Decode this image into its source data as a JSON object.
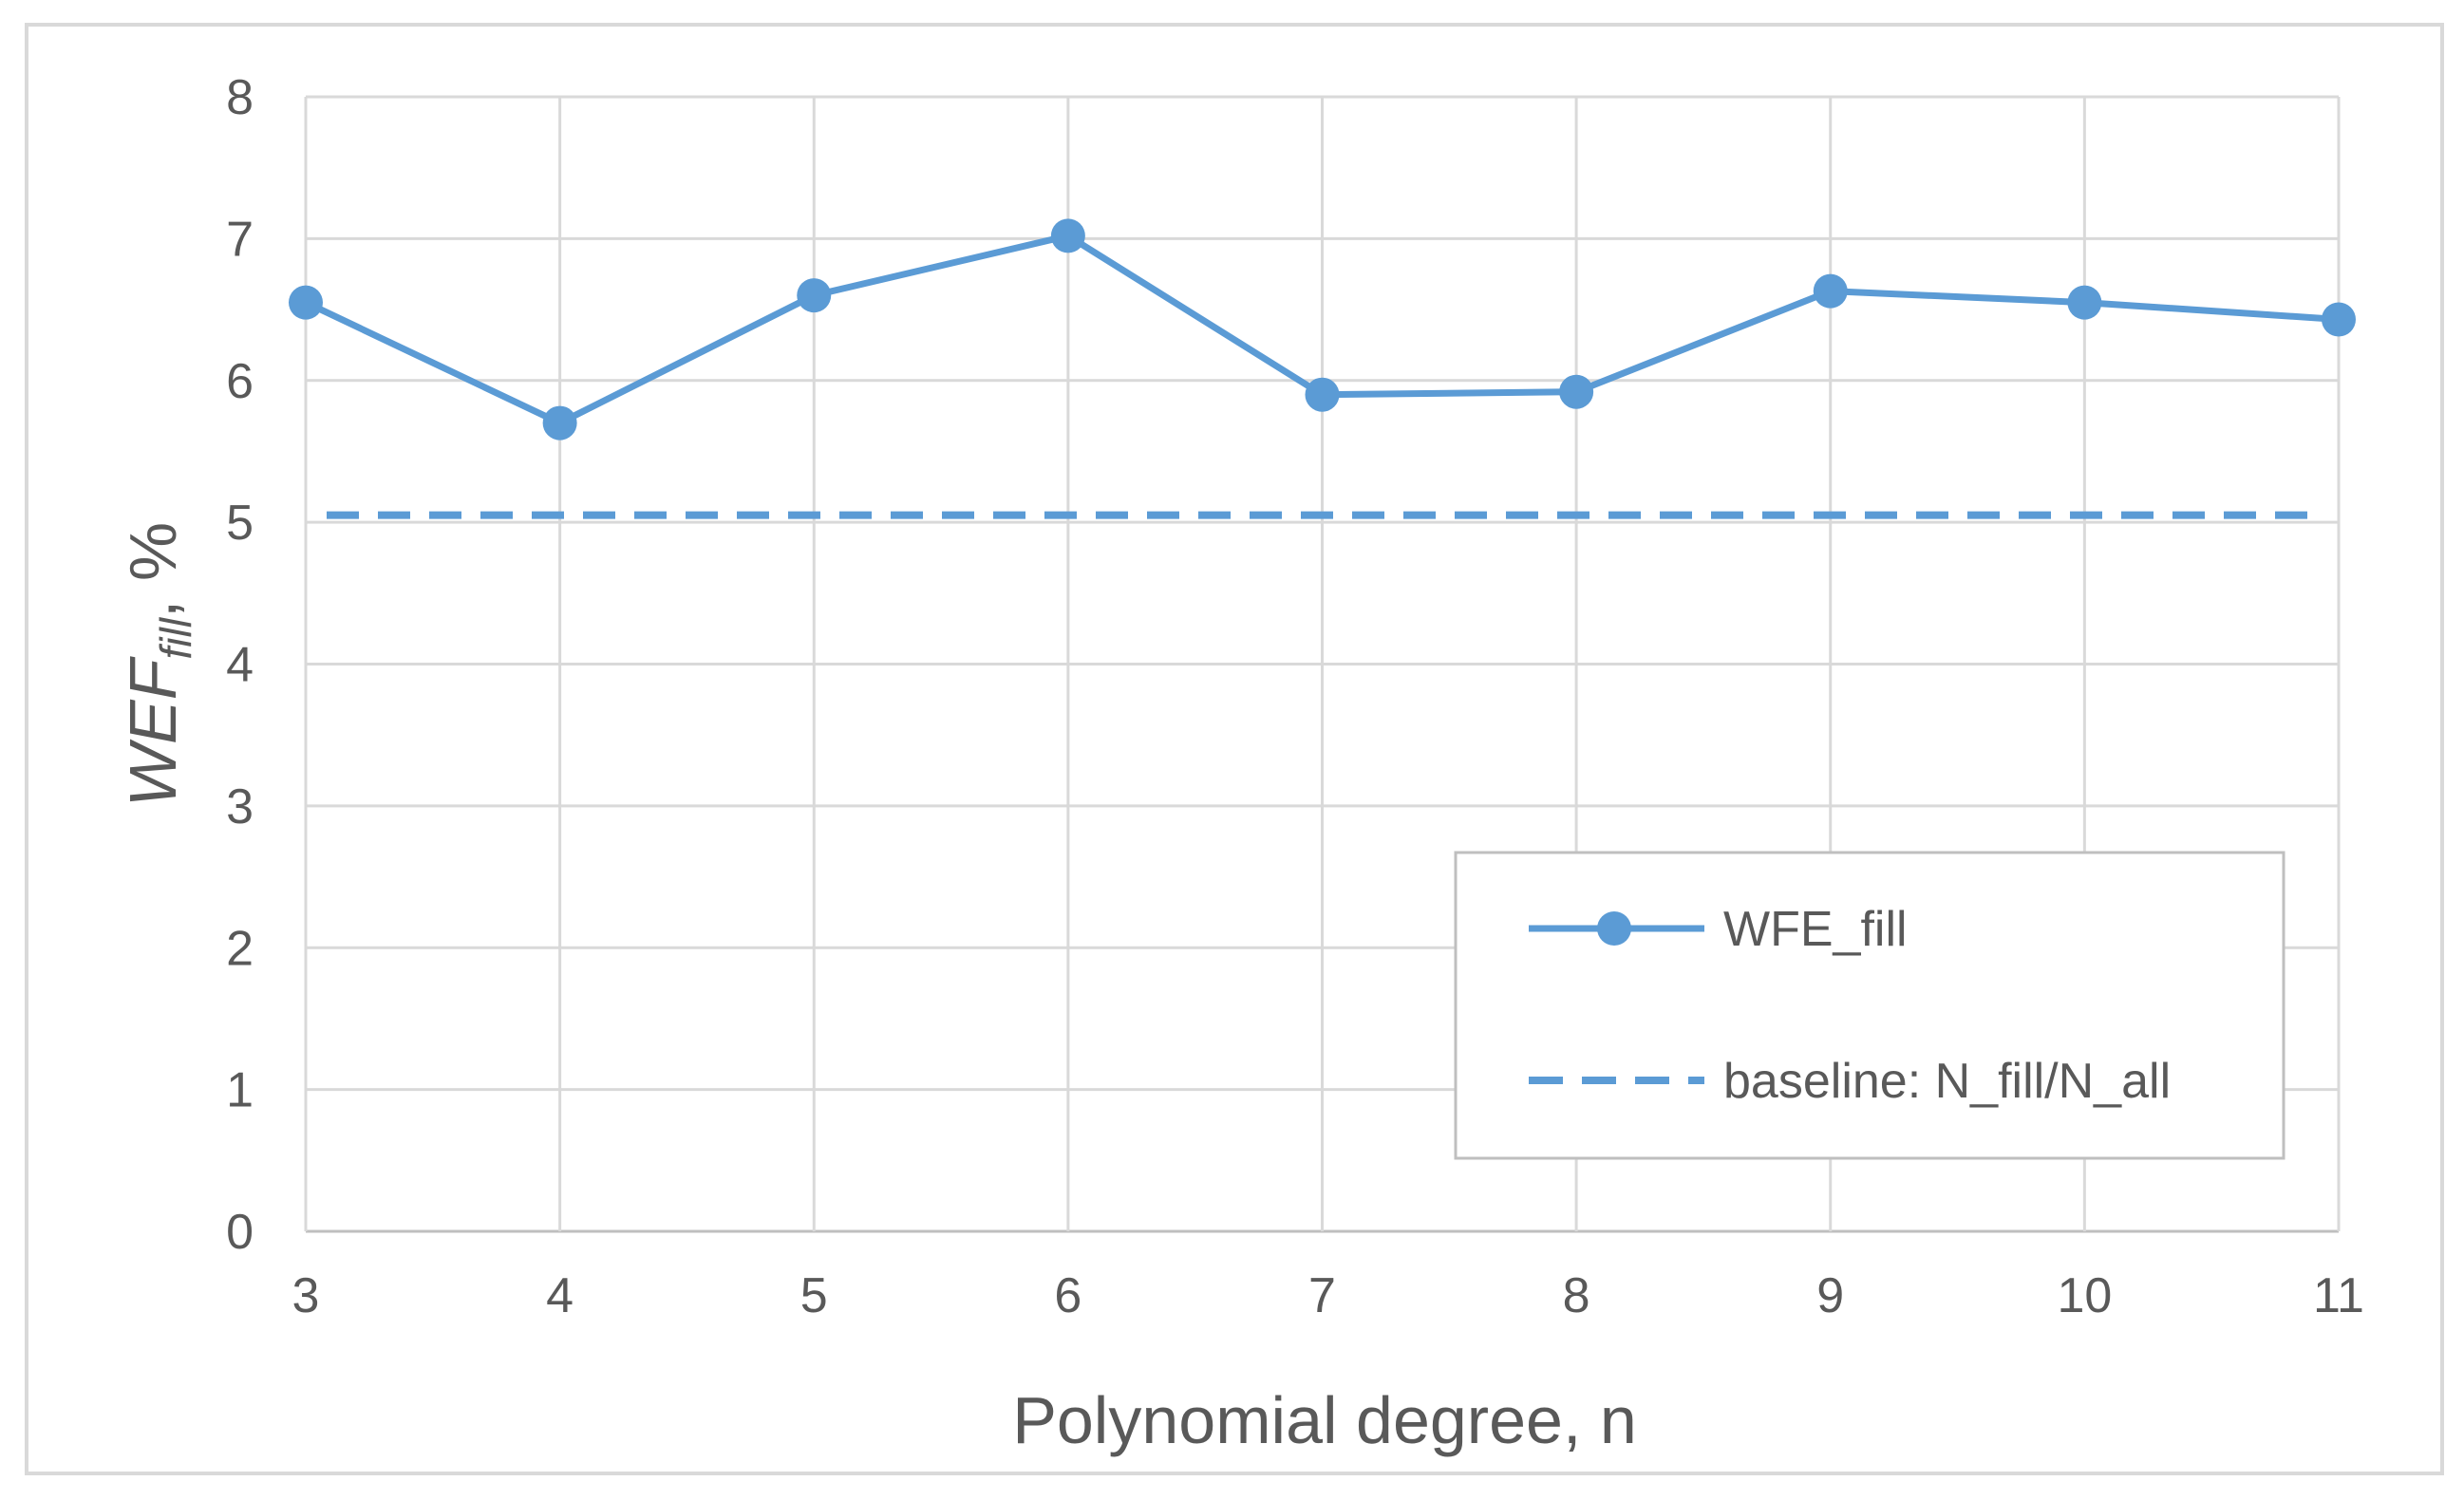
{
  "chart_data": {
    "type": "line",
    "x": [
      3,
      4,
      5,
      6,
      7,
      8,
      9,
      10,
      11
    ],
    "categories": [
      "3",
      "4",
      "5",
      "6",
      "7",
      "8",
      "9",
      "10",
      "11"
    ],
    "series": [
      {
        "name": "WFE_fill",
        "values": [
          6.55,
          5.7,
          6.6,
          7.02,
          5.9,
          5.92,
          6.63,
          6.55,
          6.43
        ],
        "color": "#5b9bd5",
        "style": "solid-with-markers"
      },
      {
        "name": "baseline: N_fill/N_all",
        "values": [
          5.05,
          5.05,
          5.05,
          5.05,
          5.05,
          5.05,
          5.05,
          5.05,
          5.05
        ],
        "color": "#5b9bd5",
        "style": "dashed"
      }
    ],
    "xlabel": "Polynomial degree, n",
    "ylabel": {
      "main": "WEF",
      "subscript": "fill",
      "suffix": ", %"
    },
    "ylim": [
      0,
      8
    ],
    "yticks": [
      "0",
      "1",
      "2",
      "3",
      "4",
      "5",
      "6",
      "7",
      "8"
    ],
    "grid": true,
    "legend": "bottom-right",
    "colors": {
      "series": "#5b9bd5",
      "grid": "#d9d9d9",
      "text": "#595959",
      "frame": "#d9d9d9"
    }
  }
}
